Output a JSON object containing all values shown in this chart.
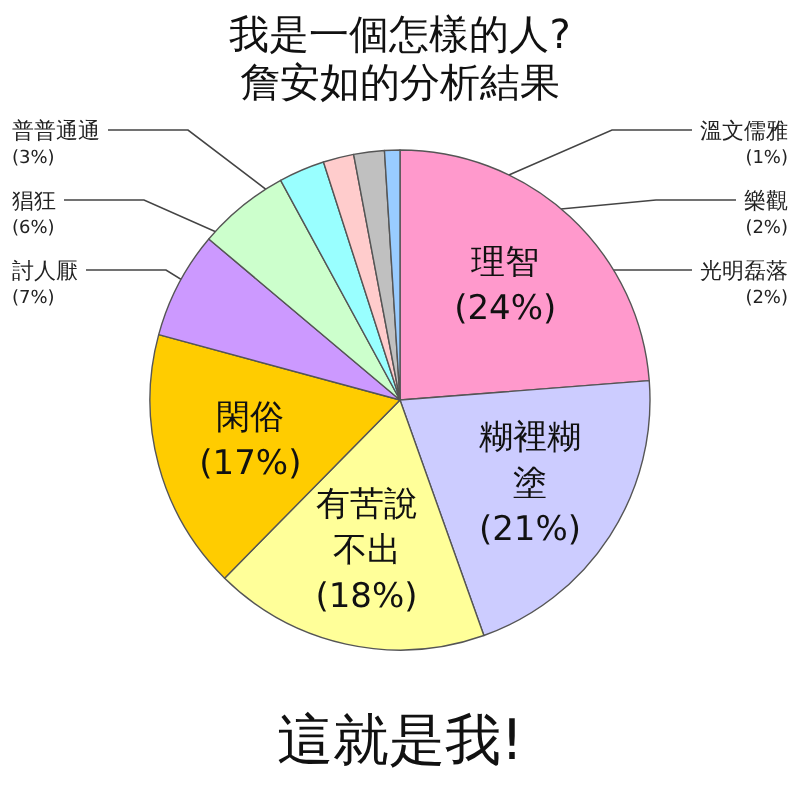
{
  "chart_data": {
    "type": "pie",
    "title": "我是一個怎樣的人?",
    "subtitle": "詹安如的分析結果",
    "categories": [
      "理智",
      "糊裡糊塗",
      "有苦說不出",
      "閑俗",
      "討人厭",
      "猖狂",
      "普普通通",
      "光明磊落",
      "樂觀",
      "溫文儒雅"
    ],
    "values": [
      24,
      21,
      18,
      17,
      7,
      6,
      3,
      2,
      2,
      1
    ],
    "colors": [
      "#ff99cc",
      "#ccccff",
      "#ffff99",
      "#ffcc00",
      "#cc99ff",
      "#ccffcc",
      "#99ffff",
      "#ffcccc",
      "#c0c0c0",
      "#99ccff"
    ],
    "value_labels": [
      "(24%)",
      "(21%)",
      "(18%)",
      "(17%)",
      "(7%)",
      "(6%)",
      "(3%)",
      "(2%)",
      "(2%)",
      "(1%)"
    ],
    "annotations": [
      "這就是我!"
    ]
  }
}
